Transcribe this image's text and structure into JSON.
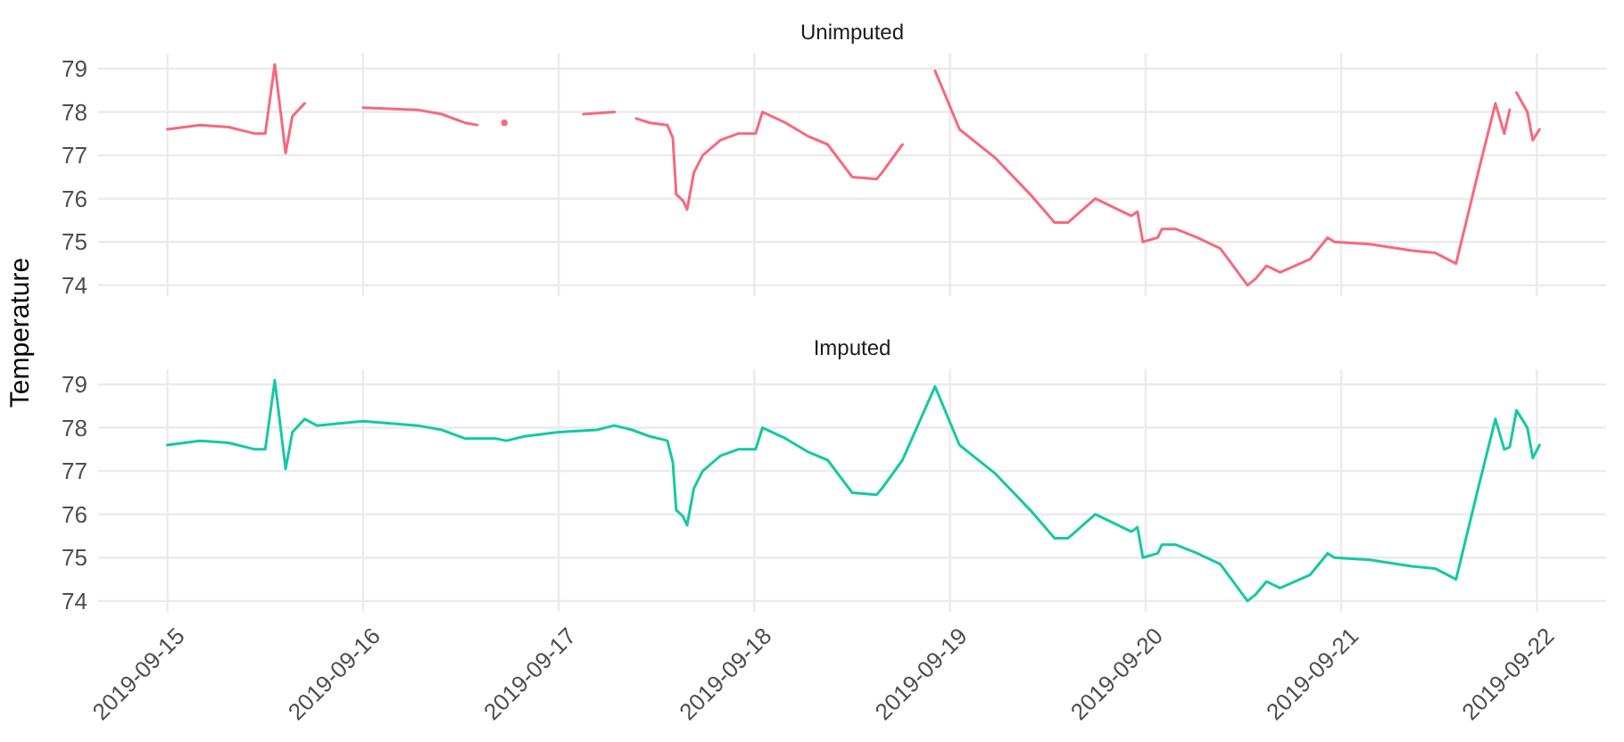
{
  "chart_data": [
    {
      "type": "line",
      "title": "Unimputed",
      "ylabel": "Temperature",
      "grid": true,
      "tick_labels": "y",
      "xlim": [
        "2019-09-14T15:30",
        "2019-09-22T08:30"
      ],
      "xticks": [
        "2019-09-15",
        "2019-09-16",
        "2019-09-17",
        "2019-09-18",
        "2019-09-19",
        "2019-09-20",
        "2019-09-21",
        "2019-09-22"
      ],
      "ylim": [
        73.75,
        79.35
      ],
      "yticks": [
        74,
        75,
        76,
        77,
        78,
        79
      ],
      "series": [
        {
          "color": "#f8687c",
          "x": [
            "2019-09-15T00:00",
            "2019-09-15T04:00",
            "2019-09-15T07:30",
            "2019-09-15T10:45",
            "2019-09-15T12:00",
            "2019-09-15T13:10",
            "2019-09-15T14:30",
            "2019-09-15T15:20",
            "2019-09-15T16:50",
            "2019-09-15T20:00",
            "2019-09-16T00:00",
            "2019-09-16T06:40",
            "2019-09-16T09:40",
            "2019-09-16T12:30",
            "2019-09-16T14:00",
            "2019-09-16T15:00",
            "2019-09-16T17:20",
            "2019-09-16T20:00",
            "2019-09-17T03:00",
            "2019-09-17T06:50",
            "2019-09-17T08:00",
            "2019-09-17T09:30",
            "2019-09-17T11:10",
            "2019-09-17T13:20",
            "2019-09-17T14:00",
            "2019-09-17T14:25",
            "2019-09-17T15:15",
            "2019-09-17T15:45",
            "2019-09-17T16:35",
            "2019-09-17T17:40",
            "2019-09-17T19:50",
            "2019-09-17T22:00",
            "2019-09-18T00:10",
            "2019-09-18T01:00",
            "2019-09-18T03:50",
            "2019-09-18T06:30",
            "2019-09-18T09:00",
            "2019-09-18T12:00",
            "2019-09-18T15:00",
            "2019-09-18T15:40",
            "2019-09-18T18:10",
            "2019-09-18T20:00",
            "2019-09-18T22:10",
            "2019-09-19T01:10",
            "2019-09-19T05:30",
            "2019-09-19T09:50",
            "2019-09-19T12:50",
            "2019-09-19T14:30",
            "2019-09-19T17:50",
            "2019-09-19T22:15",
            "2019-09-19T23:00",
            "2019-09-19T23:40",
            "2019-09-20T01:30",
            "2019-09-20T02:00",
            "2019-09-20T03:40",
            "2019-09-20T06:20",
            "2019-09-20T09:10",
            "2019-09-20T12:30",
            "2019-09-20T13:30",
            "2019-09-20T14:50",
            "2019-09-20T16:30",
            "2019-09-20T20:10",
            "2019-09-20T22:20",
            "2019-09-20T23:10",
            "2019-09-21T03:30",
            "2019-09-21T08:40",
            "2019-09-21T11:30",
            "2019-09-21T14:05",
            "2019-09-21T16:40",
            "2019-09-21T18:55",
            "2019-09-21T20:00",
            "2019-09-21T20:40",
            "2019-09-21T21:00",
            "2019-09-21T21:30",
            "2019-09-21T22:50",
            "2019-09-21T23:30",
            "2019-09-22T00:20"
          ],
          "values": [
            77.6,
            77.7,
            77.65,
            77.5,
            77.5,
            79.1,
            77.05,
            77.9,
            78.2,
            null,
            78.1,
            78.05,
            77.95,
            77.75,
            77.7,
            null,
            77.75,
            null,
            77.95,
            78.0,
            null,
            77.85,
            77.75,
            77.7,
            77.4,
            76.1,
            75.95,
            75.75,
            76.6,
            77.0,
            77.35,
            77.5,
            77.5,
            78.0,
            77.75,
            77.45,
            77.25,
            76.5,
            76.45,
            76.6,
            77.25,
            null,
            78.95,
            77.6,
            76.95,
            76.1,
            75.45,
            75.45,
            76.0,
            75.6,
            75.7,
            75.0,
            75.1,
            75.3,
            75.3,
            75.1,
            74.85,
            74.0,
            74.15,
            74.45,
            74.3,
            74.6,
            75.1,
            75.0,
            74.95,
            74.8,
            74.75,
            74.5,
            76.5,
            78.2,
            77.5,
            78.05,
            null,
            78.45,
            78.0,
            77.35,
            77.6
          ]
        }
      ]
    },
    {
      "type": "line",
      "title": "Imputed",
      "grid": true,
      "xlim": [
        "2019-09-14T15:30",
        "2019-09-22T08:30"
      ],
      "xticks": [
        "2019-09-15",
        "2019-09-16",
        "2019-09-17",
        "2019-09-18",
        "2019-09-19",
        "2019-09-20",
        "2019-09-21",
        "2019-09-22"
      ],
      "ylim": [
        73.75,
        79.35
      ],
      "yticks": [
        74,
        75,
        76,
        77,
        78,
        79
      ],
      "series": [
        {
          "color": "#14c9a4",
          "x": [
            "2019-09-15T00:00",
            "2019-09-15T04:00",
            "2019-09-15T07:30",
            "2019-09-15T10:45",
            "2019-09-15T12:00",
            "2019-09-15T13:10",
            "2019-09-15T14:30",
            "2019-09-15T15:20",
            "2019-09-15T16:50",
            "2019-09-15T18:20",
            "2019-09-16T00:00",
            "2019-09-16T06:40",
            "2019-09-16T09:40",
            "2019-09-16T12:30",
            "2019-09-16T16:15",
            "2019-09-16T17:35",
            "2019-09-16T19:50",
            "2019-09-17T00:00",
            "2019-09-17T04:40",
            "2019-09-17T06:50",
            "2019-09-17T09:00",
            "2019-09-17T11:10",
            "2019-09-17T13:20",
            "2019-09-17T14:00",
            "2019-09-17T14:25",
            "2019-09-17T15:15",
            "2019-09-17T15:45",
            "2019-09-17T16:35",
            "2019-09-17T17:40",
            "2019-09-17T19:50",
            "2019-09-17T22:00",
            "2019-09-18T00:10",
            "2019-09-18T01:00",
            "2019-09-18T03:50",
            "2019-09-18T06:30",
            "2019-09-18T09:00",
            "2019-09-18T12:00",
            "2019-09-18T15:00",
            "2019-09-18T15:40",
            "2019-09-18T18:10",
            "2019-09-18T22:10",
            "2019-09-19T01:10",
            "2019-09-19T05:30",
            "2019-09-19T09:50",
            "2019-09-19T12:50",
            "2019-09-19T14:30",
            "2019-09-19T17:50",
            "2019-09-19T22:15",
            "2019-09-19T23:00",
            "2019-09-19T23:40",
            "2019-09-20T01:30",
            "2019-09-20T02:00",
            "2019-09-20T03:40",
            "2019-09-20T06:20",
            "2019-09-20T09:10",
            "2019-09-20T12:30",
            "2019-09-20T13:30",
            "2019-09-20T14:50",
            "2019-09-20T16:30",
            "2019-09-20T20:10",
            "2019-09-20T22:20",
            "2019-09-20T23:10",
            "2019-09-21T03:30",
            "2019-09-21T08:40",
            "2019-09-21T11:30",
            "2019-09-21T14:05",
            "2019-09-21T16:40",
            "2019-09-21T18:55",
            "2019-09-21T20:00",
            "2019-09-21T20:40",
            "2019-09-21T21:30",
            "2019-09-21T22:50",
            "2019-09-21T23:30",
            "2019-09-22T00:20"
          ],
          "values": [
            77.6,
            77.7,
            77.65,
            77.5,
            77.5,
            79.1,
            77.05,
            77.9,
            78.2,
            78.05,
            78.15,
            78.05,
            77.95,
            77.75,
            77.75,
            77.7,
            77.8,
            77.9,
            77.95,
            78.05,
            77.95,
            77.8,
            77.7,
            77.2,
            76.1,
            75.95,
            75.75,
            76.6,
            77.0,
            77.35,
            77.5,
            77.5,
            78.0,
            77.75,
            77.45,
            77.25,
            76.5,
            76.45,
            76.6,
            77.25,
            78.95,
            77.6,
            76.95,
            76.1,
            75.45,
            75.45,
            76.0,
            75.6,
            75.7,
            75.0,
            75.1,
            75.3,
            75.3,
            75.1,
            74.85,
            74.0,
            74.15,
            74.45,
            74.3,
            74.6,
            75.1,
            75.0,
            74.95,
            74.8,
            74.75,
            74.5,
            76.5,
            78.2,
            77.5,
            77.55,
            78.4,
            78.0,
            77.3,
            77.6
          ]
        }
      ]
    }
  ]
}
